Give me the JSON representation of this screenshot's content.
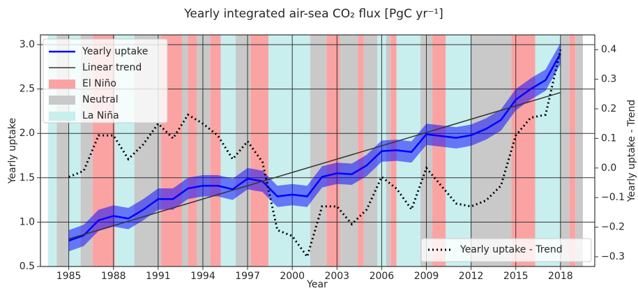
{
  "chart_data": {
    "type": "line",
    "title": "Yearly integrated air-sea CO₂ flux [PgC yr⁻¹]",
    "x_label": "Year",
    "y_label": "Yearly uptake",
    "y2_label": "Yearly uptake - Trend",
    "xlim": [
      1983.1,
      2020.3
    ],
    "xticks": [
      1985,
      1988,
      1991,
      1994,
      1997,
      2000,
      2003,
      2006,
      2009,
      2012,
      2015,
      2018
    ],
    "ylim": [
      0.5,
      3.11
    ],
    "yticks": [
      0.5,
      {
        "value": 1.0,
        "label": "1.0"
      },
      1.5,
      {
        "value": 2.0,
        "label": "2.0"
      },
      2.5,
      {
        "value": 3.0,
        "label": "3.0"
      }
    ],
    "y2lim": [
      -0.333,
      0.45
    ],
    "y2ticks": [
      {
        "value": -0.3,
        "label": "−0.3"
      },
      {
        "value": -0.2,
        "label": "−0.2"
      },
      {
        "value": -0.1,
        "label": "−0.1"
      },
      {
        "value": 0.0,
        "label": "0.0"
      },
      0.1,
      0.2,
      0.3,
      0.4
    ],
    "grid": true,
    "x": [
      1985,
      1986,
      1987,
      1988,
      1989,
      1990,
      1991,
      1992,
      1993,
      1994,
      1995,
      1996,
      1997,
      1998,
      1999,
      2000,
      2001,
      2002,
      2003,
      2004,
      2005,
      2006,
      2007,
      2008,
      2009,
      2010,
      2011,
      2012,
      2013,
      2014,
      2015,
      2016,
      2017,
      2018
    ],
    "series": [
      {
        "name": "Yearly uptake",
        "color": "#0000ff",
        "error": 0.12,
        "values": [
          0.79,
          0.85,
          1.02,
          1.07,
          1.04,
          1.14,
          1.26,
          1.26,
          1.38,
          1.41,
          1.41,
          1.37,
          1.49,
          1.46,
          1.29,
          1.31,
          1.29,
          1.51,
          1.55,
          1.54,
          1.64,
          1.8,
          1.81,
          1.79,
          1.99,
          1.97,
          1.95,
          1.98,
          2.05,
          2.15,
          2.38,
          2.5,
          2.6,
          2.9
        ]
      },
      {
        "name": "Linear trend",
        "color": "#333333",
        "x": [
          1985,
          2018
        ],
        "values": [
          0.81,
          2.46
        ]
      },
      {
        "name": "Yearly uptake - Trend",
        "color": "#000000",
        "axis": "y2",
        "dash": true,
        "values": [
          -0.03,
          -0.01,
          0.11,
          0.11,
          0.03,
          0.08,
          0.15,
          0.1,
          0.18,
          0.15,
          0.11,
          0.03,
          0.09,
          0.02,
          -0.21,
          -0.23,
          -0.3,
          -0.13,
          -0.13,
          -0.19,
          -0.14,
          -0.03,
          -0.07,
          -0.14,
          0.0,
          -0.06,
          -0.12,
          -0.13,
          -0.11,
          -0.06,
          0.11,
          0.17,
          0.18,
          0.4
        ]
      }
    ],
    "enso": {
      "phases": [
        {
          "name": "El Niño",
          "color": "#fba3a3"
        },
        {
          "name": "Neutral",
          "color": "#c9c9c9"
        },
        {
          "name": "La Niña",
          "color": "#c9eeee"
        }
      ],
      "periods": [
        {
          "start": 1983.6,
          "end": 1984.2,
          "phase": "La Niña"
        },
        {
          "start": 1984.2,
          "end": 1985.0,
          "phase": "Neutral"
        },
        {
          "start": 1985.0,
          "end": 1985.8,
          "phase": "La Niña"
        },
        {
          "start": 1985.8,
          "end": 1986.6,
          "phase": "Neutral"
        },
        {
          "start": 1986.6,
          "end": 1988.1,
          "phase": "El Niño"
        },
        {
          "start": 1988.1,
          "end": 1989.4,
          "phase": "La Niña"
        },
        {
          "start": 1989.4,
          "end": 1991.2,
          "phase": "Neutral"
        },
        {
          "start": 1991.2,
          "end": 1992.6,
          "phase": "El Niño"
        },
        {
          "start": 1992.6,
          "end": 1993.0,
          "phase": "Neutral"
        },
        {
          "start": 1993.0,
          "end": 1993.6,
          "phase": "El Niño"
        },
        {
          "start": 1993.6,
          "end": 1994.5,
          "phase": "Neutral"
        },
        {
          "start": 1994.5,
          "end": 1995.2,
          "phase": "El Niño"
        },
        {
          "start": 1995.2,
          "end": 1996.2,
          "phase": "La Niña"
        },
        {
          "start": 1996.2,
          "end": 1997.2,
          "phase": "Neutral"
        },
        {
          "start": 1997.2,
          "end": 1998.4,
          "phase": "El Niño"
        },
        {
          "start": 1998.4,
          "end": 2001.2,
          "phase": "La Niña"
        },
        {
          "start": 2001.2,
          "end": 2002.3,
          "phase": "Neutral"
        },
        {
          "start": 2002.3,
          "end": 2003.2,
          "phase": "El Niño"
        },
        {
          "start": 2003.2,
          "end": 2004.4,
          "phase": "Neutral"
        },
        {
          "start": 2004.4,
          "end": 2004.8,
          "phase": "El Niño"
        },
        {
          "start": 2004.8,
          "end": 2005.7,
          "phase": "Neutral"
        },
        {
          "start": 2005.7,
          "end": 2006.3,
          "phase": "La Niña"
        },
        {
          "start": 2006.3,
          "end": 2006.6,
          "phase": "Neutral"
        },
        {
          "start": 2006.6,
          "end": 2007.0,
          "phase": "El Niño"
        },
        {
          "start": 2007.0,
          "end": 2008.6,
          "phase": "La Niña"
        },
        {
          "start": 2008.6,
          "end": 2009.4,
          "phase": "Neutral"
        },
        {
          "start": 2009.4,
          "end": 2010.3,
          "phase": "El Niño"
        },
        {
          "start": 2010.3,
          "end": 2012.0,
          "phase": "La Niña"
        },
        {
          "start": 2012.0,
          "end": 2014.7,
          "phase": "Neutral"
        },
        {
          "start": 2014.7,
          "end": 2016.3,
          "phase": "El Niño"
        },
        {
          "start": 2016.3,
          "end": 2018.0,
          "phase": "La Niña"
        },
        {
          "start": 2018.0,
          "end": 2018.6,
          "phase": "Neutral"
        },
        {
          "start": 2018.6,
          "end": 2019.0,
          "phase": "El Niño"
        },
        {
          "start": 2019.0,
          "end": 2019.5,
          "phase": "Neutral"
        }
      ]
    }
  }
}
